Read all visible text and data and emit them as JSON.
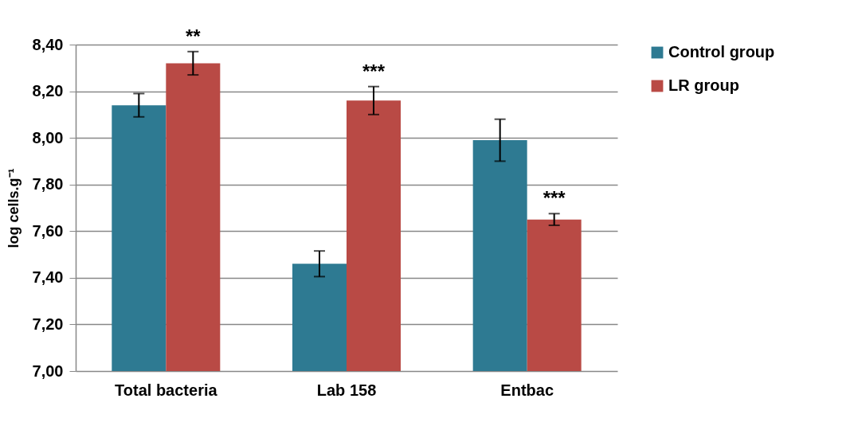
{
  "chart_data": {
    "type": "bar",
    "ylabel": "log cells.g⁻¹",
    "categories": [
      "Total bacteria",
      "Lab 158",
      "Entbac"
    ],
    "series": [
      {
        "name": "Control group",
        "color": "#2e7a92",
        "values": [
          8.14,
          7.46,
          7.99
        ],
        "errors": [
          0.05,
          0.055,
          0.09
        ]
      },
      {
        "name": "LR group",
        "color": "#b94a45",
        "values": [
          8.32,
          8.16,
          7.65
        ],
        "errors": [
          0.05,
          0.06,
          0.025
        ]
      }
    ],
    "ylim": [
      7.0,
      8.4
    ],
    "yticks": [
      {
        "value": 7.0,
        "label": "7,00"
      },
      {
        "value": 7.2,
        "label": "7,20"
      },
      {
        "value": 7.4,
        "label": "7,40"
      },
      {
        "value": 7.6,
        "label": "7,60"
      },
      {
        "value": 7.8,
        "label": "7,80"
      },
      {
        "value": 8.0,
        "label": "8,00"
      },
      {
        "value": 8.2,
        "label": "8,20"
      },
      {
        "value": 8.4,
        "label": "8,40"
      }
    ],
    "grid": "y",
    "legend": "right",
    "annotations": [
      {
        "text": "**",
        "x": "Total bacteria",
        "y": 8.32
      },
      {
        "text": "***",
        "x": "Lab 158",
        "y": 8.16
      },
      {
        "text": "***",
        "x": "Entbac",
        "y": 7.65
      }
    ]
  }
}
